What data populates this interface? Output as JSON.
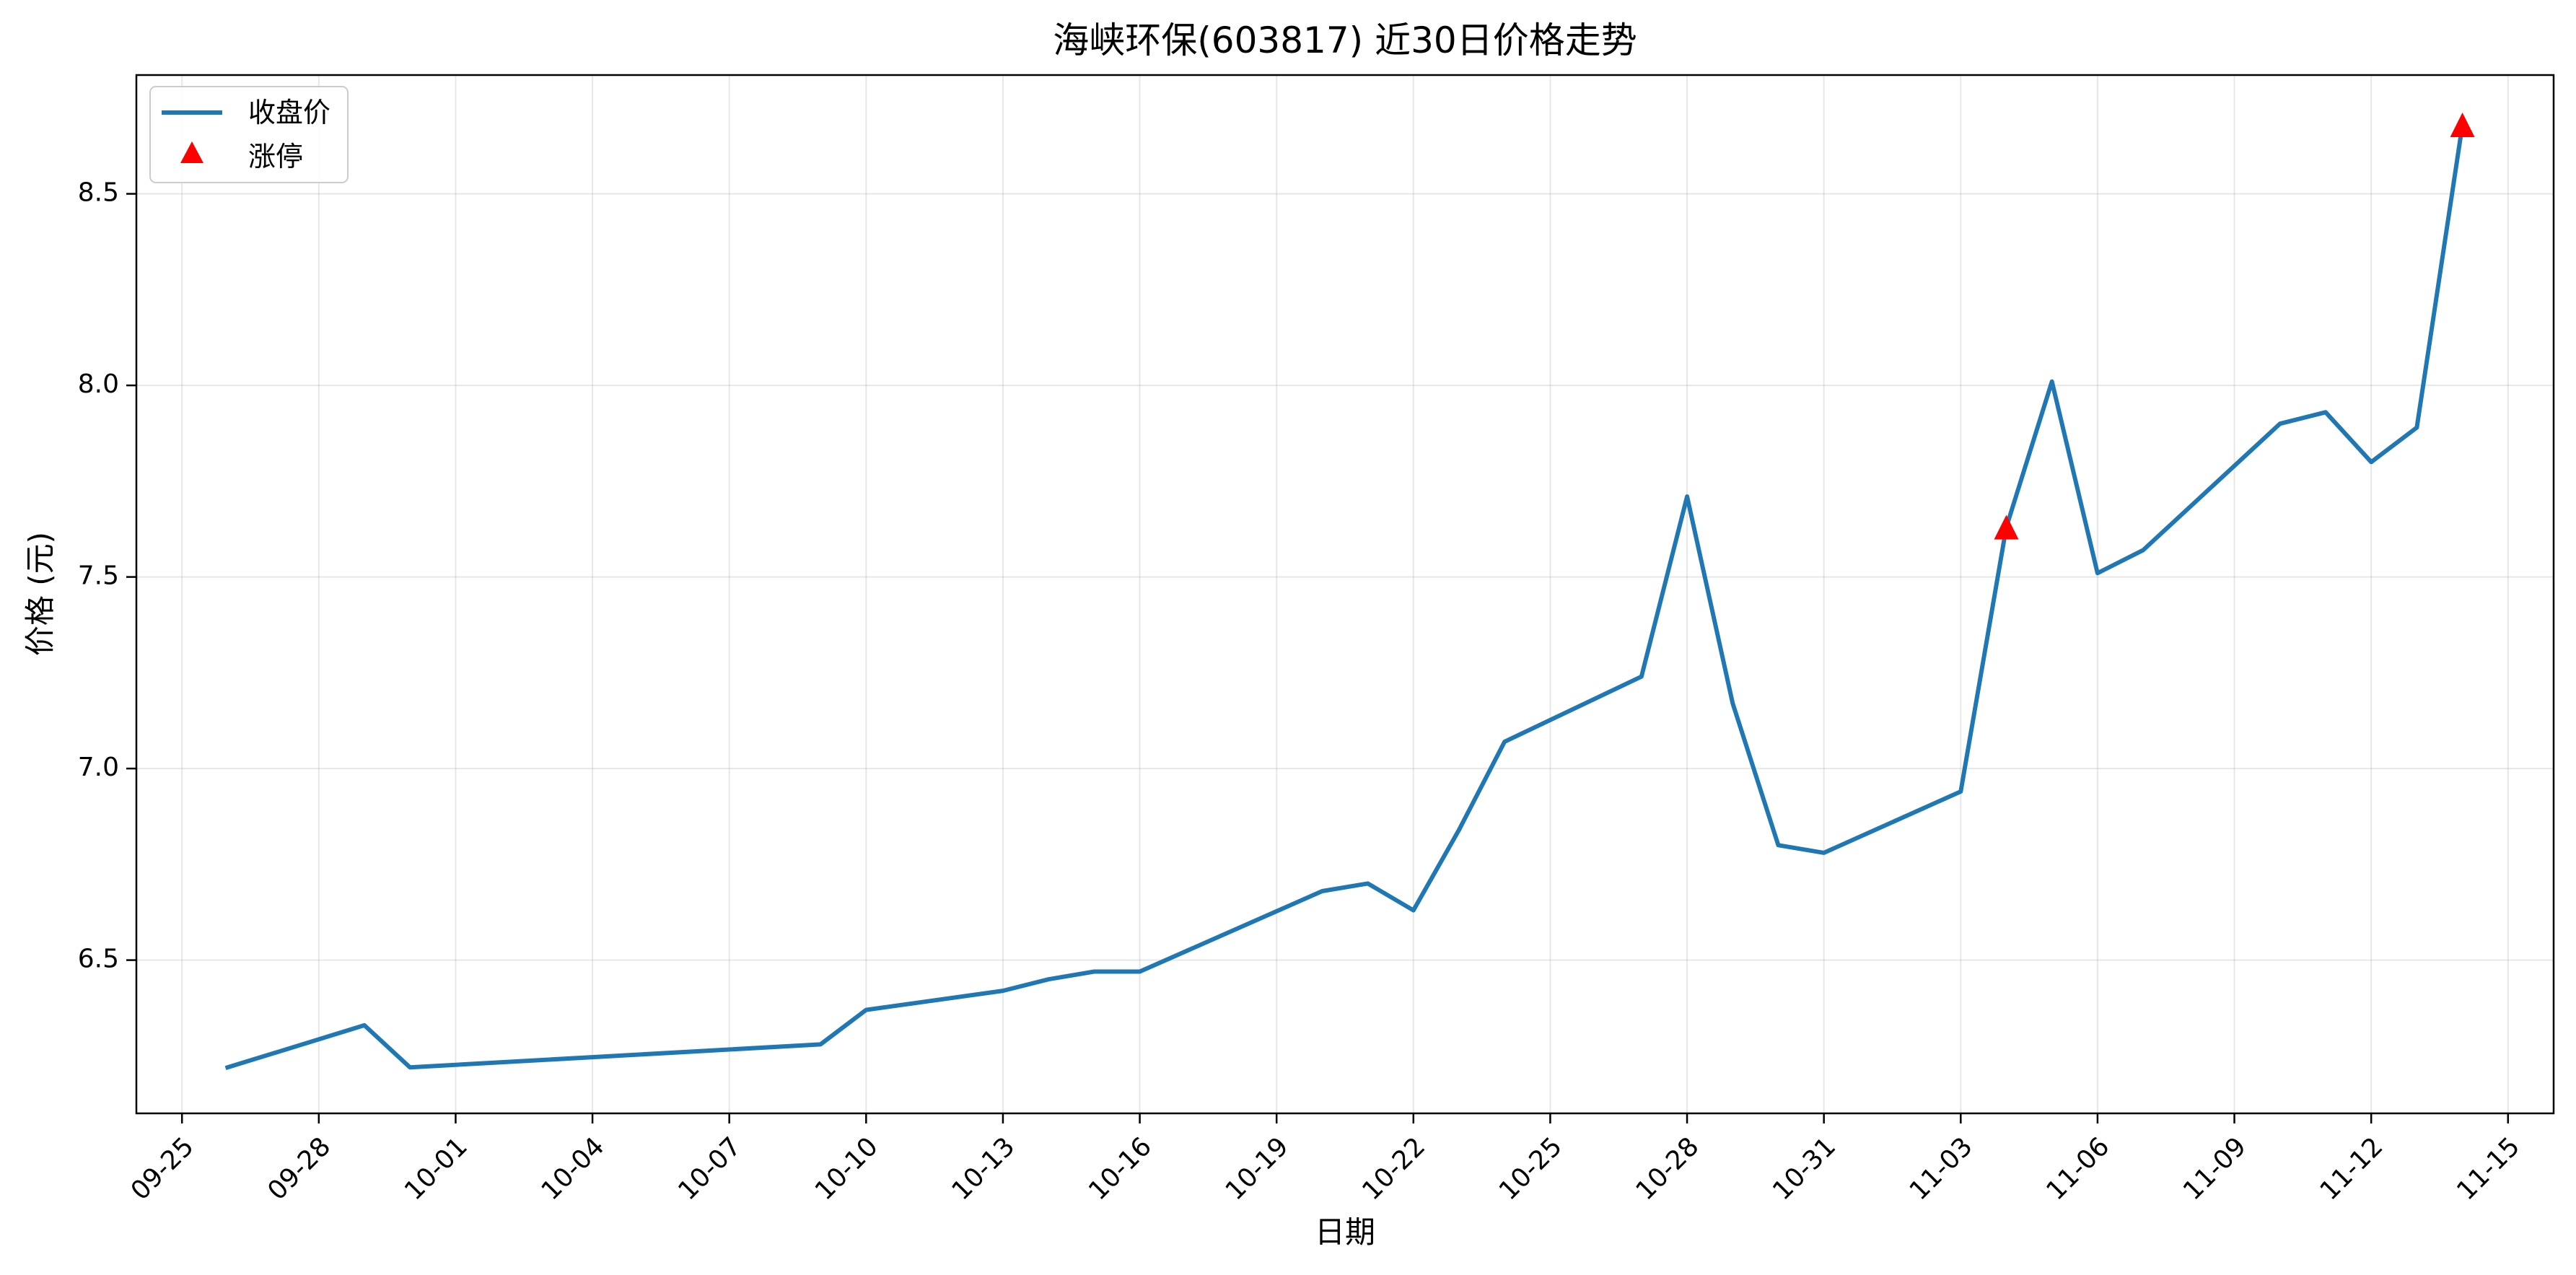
{
  "chart_data": {
    "type": "line",
    "title": "海峡环保(603817) 近30日价格走势",
    "xlabel": "日期",
    "ylabel": "价格 (元)",
    "x_range": [
      "2025-09-24",
      "2025-11-16"
    ],
    "ylim": [
      6.1,
      8.81
    ],
    "grid": true,
    "legend_position": "top-left",
    "colors": {
      "line": "#1f77b4",
      "limit_up": "#ff0000"
    },
    "x_ticks": [
      "2025-09-25",
      "2025-09-28",
      "2025-10-01",
      "2025-10-04",
      "2025-10-07",
      "2025-10-10",
      "2025-10-13",
      "2025-10-16",
      "2025-10-19",
      "2025-10-22",
      "2025-10-25",
      "2025-10-28",
      "2025-10-31",
      "2025-11-03",
      "2025-11-06",
      "2025-11-09",
      "2025-11-12",
      "2025-11-15"
    ],
    "x_tick_labels": [
      "09-25",
      "09-28",
      "10-01",
      "10-04",
      "10-07",
      "10-10",
      "10-13",
      "10-16",
      "10-19",
      "10-22",
      "10-25",
      "10-28",
      "10-31",
      "11-03",
      "11-06",
      "11-09",
      "11-12",
      "11-15"
    ],
    "y_ticks": [
      6.5,
      7.0,
      7.5,
      8.0,
      8.5
    ],
    "y_tick_labels": [
      "6.5",
      "7.0",
      "7.5",
      "8.0",
      "8.5"
    ],
    "series": [
      {
        "name": "收盘价",
        "points": [
          {
            "x": "2025-09-26",
            "y": 6.22
          },
          {
            "x": "2025-09-29",
            "y": 6.33
          },
          {
            "x": "2025-09-30",
            "y": 6.22
          },
          {
            "x": "2025-10-09",
            "y": 6.28
          },
          {
            "x": "2025-10-10",
            "y": 6.37
          },
          {
            "x": "2025-10-13",
            "y": 6.42
          },
          {
            "x": "2025-10-14",
            "y": 6.45
          },
          {
            "x": "2025-10-15",
            "y": 6.47
          },
          {
            "x": "2025-10-16",
            "y": 6.47
          },
          {
            "x": "2025-10-20",
            "y": 6.68
          },
          {
            "x": "2025-10-21",
            "y": 6.7
          },
          {
            "x": "2025-10-22",
            "y": 6.63
          },
          {
            "x": "2025-10-23",
            "y": 6.84
          },
          {
            "x": "2025-10-24",
            "y": 7.07
          },
          {
            "x": "2025-10-27",
            "y": 7.24
          },
          {
            "x": "2025-10-28",
            "y": 7.71
          },
          {
            "x": "2025-10-29",
            "y": 7.17
          },
          {
            "x": "2025-10-30",
            "y": 6.8
          },
          {
            "x": "2025-10-31",
            "y": 6.78
          },
          {
            "x": "2025-11-03",
            "y": 6.94
          },
          {
            "x": "2025-11-04",
            "y": 7.63
          },
          {
            "x": "2025-11-05",
            "y": 8.01
          },
          {
            "x": "2025-11-06",
            "y": 7.51
          },
          {
            "x": "2025-11-07",
            "y": 7.57
          },
          {
            "x": "2025-11-10",
            "y": 7.9
          },
          {
            "x": "2025-11-11",
            "y": 7.93
          },
          {
            "x": "2025-11-12",
            "y": 7.8
          },
          {
            "x": "2025-11-13",
            "y": 7.89
          },
          {
            "x": "2025-11-14",
            "y": 8.68
          }
        ]
      },
      {
        "name": "涨停",
        "marker": "triangle",
        "points": [
          {
            "x": "2025-11-04",
            "y": 7.63
          },
          {
            "x": "2025-11-14",
            "y": 8.68
          }
        ]
      }
    ]
  }
}
